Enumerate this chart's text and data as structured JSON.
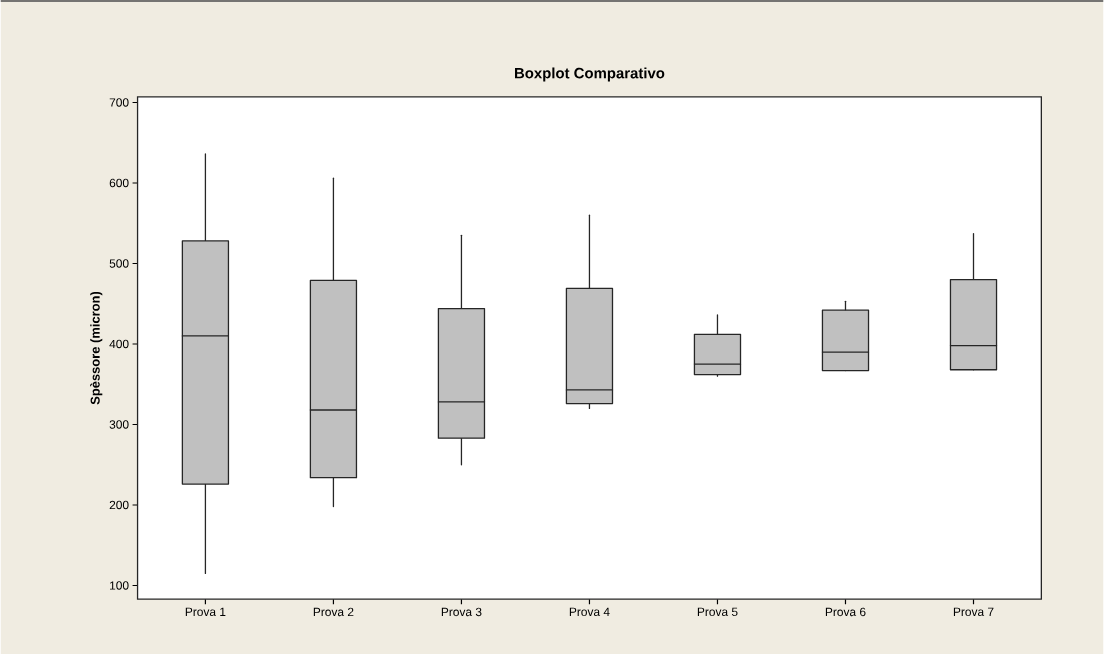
{
  "chart_data": {
    "type": "box",
    "title": "Boxplot Comparativo",
    "ylabel": "Spèssore (micron)",
    "categories": [
      "Prova 1",
      "Prova 2",
      "Prova 3",
      "Prova 4",
      "Prova 5",
      "Prova 6",
      "Prova 7"
    ],
    "boxes": [
      {
        "low": 115,
        "q1": 226,
        "median": 410,
        "q3": 528,
        "high": 636
      },
      {
        "low": 198,
        "q1": 234,
        "median": 318,
        "q3": 479,
        "high": 606
      },
      {
        "low": 250,
        "q1": 283,
        "median": 328,
        "q3": 444,
        "high": 535
      },
      {
        "low": 320,
        "q1": 326,
        "median": 343,
        "q3": 469,
        "high": 560
      },
      {
        "low": 360,
        "q1": 362,
        "median": 375,
        "q3": 412,
        "high": 436
      },
      {
        "low": 367,
        "q1": 367,
        "median": 390,
        "q3": 442,
        "high": 453
      },
      {
        "low": 368,
        "q1": 368,
        "median": 398,
        "q3": 480,
        "high": 537
      }
    ],
    "color": "#c0c0c0",
    "ylim": [
      83,
      707
    ],
    "yticks": [
      100,
      200,
      300,
      400,
      500,
      600,
      700
    ]
  }
}
